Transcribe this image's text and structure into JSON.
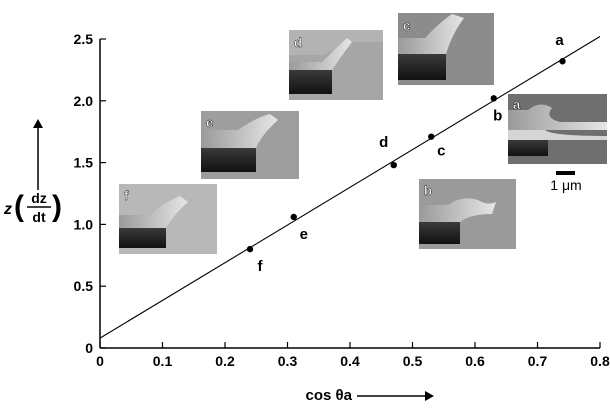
{
  "chart_data": {
    "type": "scatter",
    "xlim": [
      0,
      0.8
    ],
    "ylim": [
      0,
      2.5
    ],
    "x_ticks": [
      "0",
      "0.1",
      "0.2",
      "0.3",
      "0.4",
      "0.5",
      "0.6",
      "0.7",
      "0.8"
    ],
    "y_ticks": [
      "0",
      "0.5",
      "1.0",
      "1.5",
      "2.0",
      "2.5"
    ],
    "xlabel": "cos θa",
    "ylabel": "z(dz/dt)",
    "grid": false,
    "points": [
      {
        "label": "f",
        "x": 0.24,
        "y": 0.8
      },
      {
        "label": "e",
        "x": 0.31,
        "y": 1.06
      },
      {
        "label": "d",
        "x": 0.47,
        "y": 1.48
      },
      {
        "label": "c",
        "x": 0.53,
        "y": 1.71
      },
      {
        "label": "b",
        "x": 0.63,
        "y": 2.02
      },
      {
        "label": "a",
        "x": 0.74,
        "y": 2.32
      }
    ],
    "fit_line": {
      "x": [
        0,
        0.8
      ],
      "y": [
        0.08,
        2.52
      ]
    },
    "insets": [
      "a",
      "b",
      "c",
      "d",
      "e",
      "f"
    ],
    "scale_bar_label": "1 μm"
  }
}
